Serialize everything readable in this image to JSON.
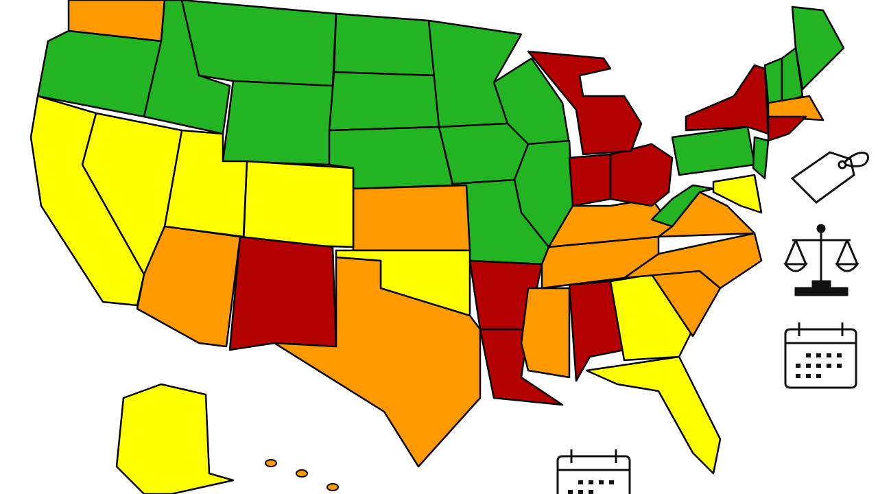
{
  "map": {
    "colors": [
      "#22b422",
      "#ffff00",
      "#ff9900",
      "#b30000"
    ],
    "outline": "#000000"
  }
}
